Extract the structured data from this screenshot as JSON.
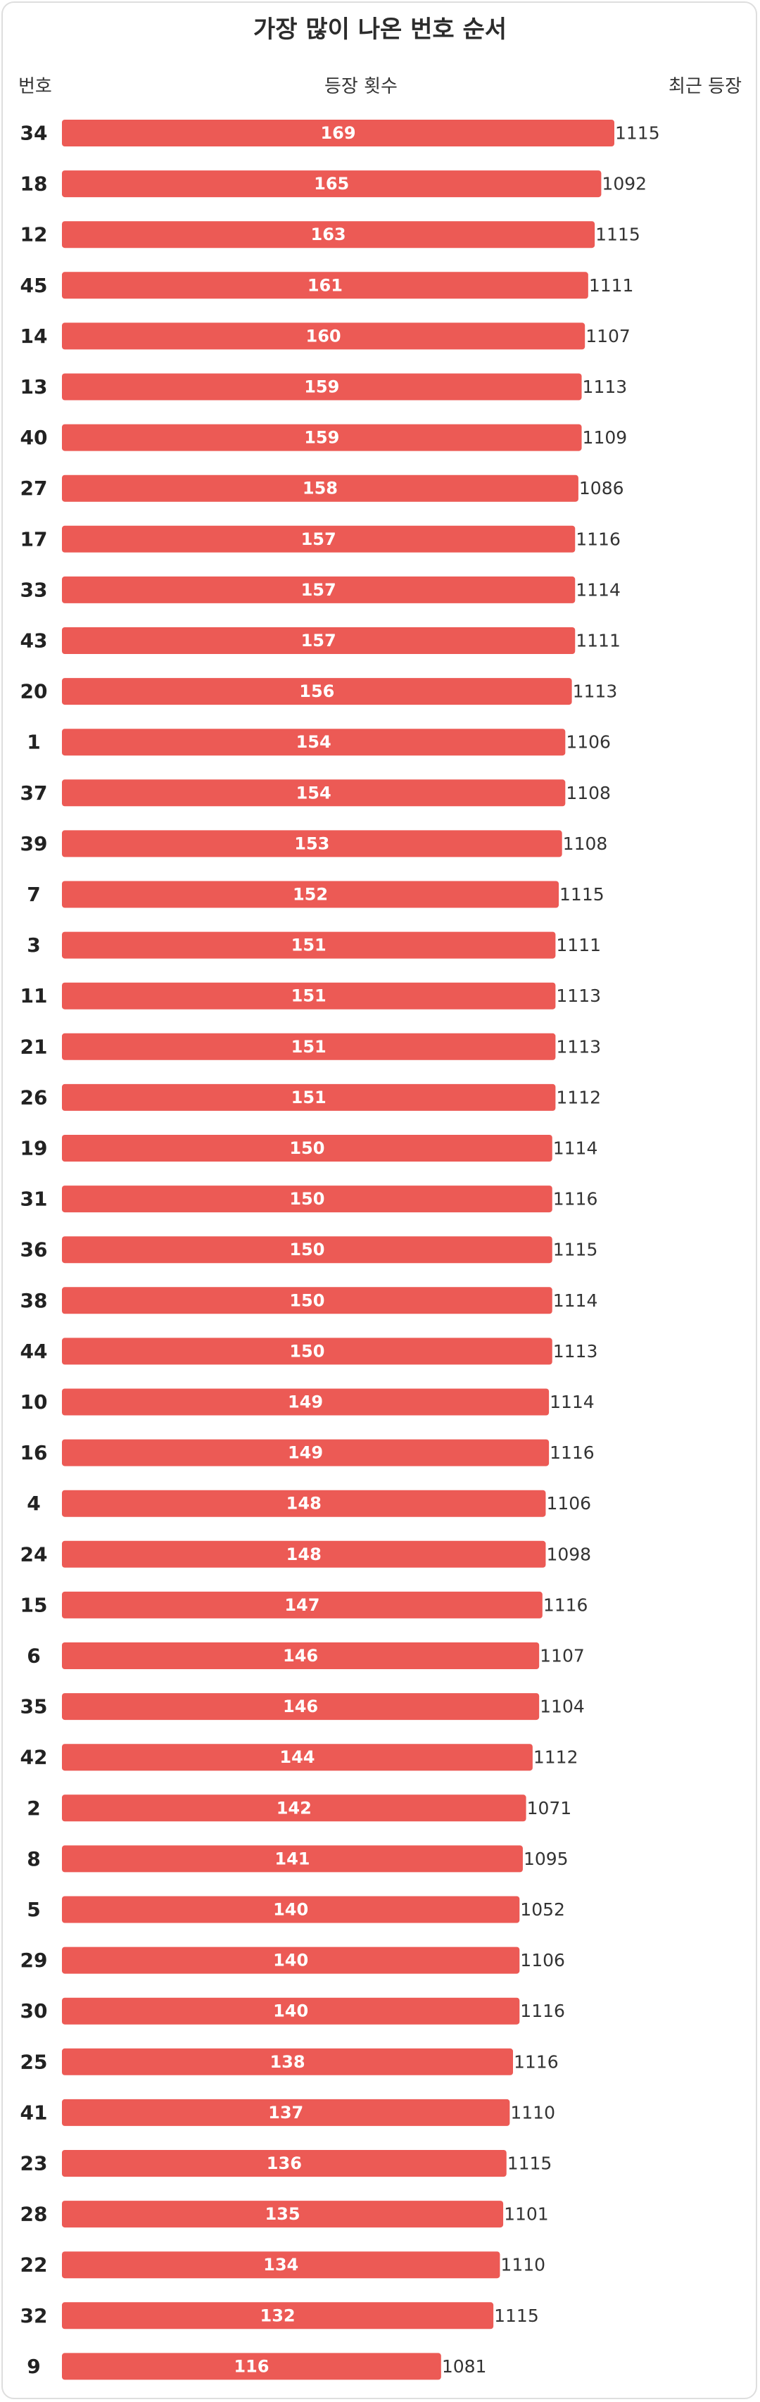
{
  "header": {
    "title": "가장 많이 나온 번호 순서",
    "col_number": "번호",
    "col_count": "등장 횟수",
    "col_recent": "최근 등장"
  },
  "colors": {
    "bar": "#ec5a55",
    "text": "#222222",
    "value_text": "#ffffff"
  },
  "chart_data": {
    "type": "bar",
    "orientation": "horizontal",
    "title": "가장 많이 나온 번호 순서",
    "xlabel": "등장 횟수",
    "ylabel": "번호",
    "xlim": [
      0,
      169
    ],
    "grid": false,
    "categories": [
      "34",
      "18",
      "12",
      "45",
      "14",
      "13",
      "40",
      "27",
      "17",
      "33",
      "43",
      "20",
      "1",
      "37",
      "39",
      "7",
      "3",
      "11",
      "21",
      "26",
      "19",
      "31",
      "36",
      "38",
      "44",
      "10",
      "16",
      "4",
      "24",
      "15",
      "6",
      "35",
      "42",
      "2",
      "8",
      "5",
      "29",
      "30",
      "25",
      "41",
      "23",
      "28",
      "22",
      "32",
      "9"
    ],
    "values": [
      169,
      165,
      163,
      161,
      160,
      159,
      159,
      158,
      157,
      157,
      157,
      156,
      154,
      154,
      153,
      152,
      151,
      151,
      151,
      151,
      150,
      150,
      150,
      150,
      150,
      149,
      149,
      148,
      148,
      147,
      146,
      146,
      144,
      142,
      141,
      140,
      140,
      140,
      138,
      137,
      136,
      135,
      134,
      132,
      116
    ],
    "recent": [
      "1115",
      "1092",
      "1115",
      "1111",
      "1107",
      "1113",
      "1109",
      "1086",
      "1116",
      "1114",
      "1111",
      "1113",
      "1106",
      "1108",
      "1108",
      "1115",
      "1111",
      "1113",
      "1113",
      "1112",
      "1114",
      "1116",
      "1115",
      "1114",
      "1113",
      "1114",
      "1116",
      "1106",
      "1098",
      "1116",
      "1107",
      "1104",
      "1112",
      "1071",
      "1095",
      "1052",
      "1106",
      "1116",
      "1116",
      "1110",
      "1115",
      "1101",
      "1110",
      "1115",
      "1081"
    ]
  }
}
